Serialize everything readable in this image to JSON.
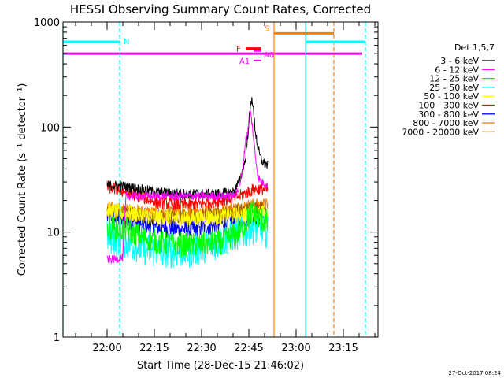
{
  "chart_data": {
    "type": "line",
    "title": "HESSI Observing Summary Count Rates, Corrected",
    "xlabel": "Start Time (28-Dec-15 21:46:02)",
    "ylabel": "Corrected Count Rate (s⁻¹ detector⁻¹)",
    "yscale": "log",
    "ylim": [
      1,
      1000
    ],
    "xlim_minutes_from_start": [
      0,
      100
    ],
    "x_tick_labels": [
      "22:00",
      "22:15",
      "22:30",
      "22:45",
      "23:00",
      "23:15"
    ],
    "x_ticks_minutes": [
      14,
      29,
      44,
      59,
      74,
      89
    ],
    "y_tick_labels": [
      "1",
      "10",
      "100",
      "1000"
    ],
    "y_ticks": [
      1,
      10,
      100,
      1000
    ],
    "legend_title": "Det 1,5,7",
    "legend_position": "right",
    "series": [
      {
        "name": "3 - 6 keV",
        "color": "#000000",
        "t": [
          14,
          20,
          30,
          40,
          48,
          54,
          56,
          58,
          59,
          60,
          61,
          62,
          63,
          64,
          65
        ],
        "values": [
          28,
          27,
          24,
          23,
          23,
          24,
          30,
          50,
          110,
          200,
          95,
          60,
          48,
          45,
          43
        ]
      },
      {
        "name": "6 - 12 keV",
        "color": "#ff00ff",
        "t": [
          14,
          16,
          19,
          20,
          54,
          56,
          57,
          58,
          59,
          59.5,
          60,
          61,
          62,
          63,
          65
        ],
        "values": [
          5.5,
          5.5,
          5.7,
          22,
          22,
          26,
          40,
          75,
          100,
          140,
          110,
          55,
          33,
          30,
          28
        ]
      },
      {
        "name": "12 - 25 keV",
        "color": "#00ff00",
        "t": [
          14,
          20,
          30,
          40,
          50,
          56,
          58,
          60,
          62,
          65
        ],
        "values": [
          11,
          10.5,
          8,
          7.5,
          8,
          10,
          12,
          16,
          14,
          12
        ]
      },
      {
        "name": "25 - 50 keV",
        "color": "#00ffff",
        "t": [
          14,
          20,
          25,
          30,
          40,
          50,
          55,
          58,
          60,
          65
        ],
        "values": [
          9,
          8,
          7,
          6.5,
          6.5,
          8,
          9.5,
          10,
          11,
          10
        ]
      },
      {
        "name": "50 - 100 keV",
        "color": "#ffff00",
        "t": [
          14,
          20,
          30,
          40,
          50,
          60,
          65
        ],
        "values": [
          16,
          15,
          14,
          13.5,
          14,
          15,
          15
        ]
      },
      {
        "name": "100 - 300 keV",
        "color": "#ff0000",
        "t": [
          14,
          20,
          30,
          40,
          50,
          56,
          60,
          62,
          65
        ],
        "values": [
          27,
          24,
          19,
          18,
          20,
          22,
          25,
          26,
          25
        ]
      },
      {
        "name": "300 - 800 keV",
        "color": "#0000ff",
        "t": [
          14,
          20,
          30,
          40,
          50,
          56,
          60,
          65
        ],
        "values": [
          14,
          13,
          11,
          10.5,
          12,
          13,
          14,
          14
        ]
      },
      {
        "name": "800 - 7000 keV",
        "color": "#ff8000",
        "t": [
          14,
          20,
          30,
          40,
          50,
          56,
          60,
          65
        ],
        "values": [
          17,
          16,
          15,
          15,
          16,
          17,
          18,
          18
        ]
      },
      {
        "name": "7000 - 20000 keV",
        "color": "#996600",
        "t": [
          14,
          20,
          30,
          40,
          50,
          56,
          60,
          65
        ],
        "values": [
          16,
          15,
          14,
          14,
          15,
          16,
          17,
          17
        ]
      }
    ],
    "annotations": {
      "attenuator_line_value": 500,
      "attenuator_line_color": "#ff00ff",
      "night_label": "N",
      "saa_label": "S",
      "flare_label": "F",
      "a1_label": "A1",
      "a0_label": "A0",
      "night_color": "#00ffff",
      "saa_color": "#ff8000",
      "flare_color": "#ff0000",
      "night_level_value": 650,
      "saa_level_value": 780,
      "flare_level_value": 560,
      "a0_level_value": 530,
      "a1_level_value": 430,
      "night_intervals": [
        [
          0,
          18
        ],
        [
          77,
          96
        ]
      ],
      "saa_interval": [
        67,
        86
      ],
      "flare_interval": [
        58,
        63
      ],
      "a0_interval": [
        60.5,
        63
      ],
      "a1_interval": [
        60.5,
        63
      ],
      "cyan_vlines": [
        0,
        18,
        77,
        96
      ],
      "orange_vlines": [
        67,
        86
      ]
    }
  },
  "footer": {
    "timestamp": "27-Oct-2017 08:24"
  }
}
